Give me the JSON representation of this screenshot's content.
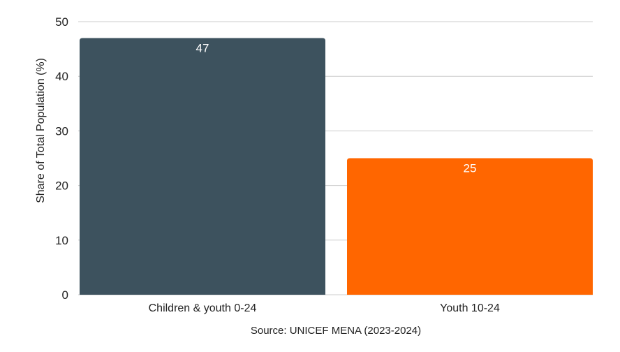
{
  "chart_data": {
    "type": "bar",
    "categories": [
      "Children & youth 0-24",
      "Youth 10-24"
    ],
    "values": [
      47,
      25
    ],
    "colors": [
      "#3d525e",
      "#ff6600"
    ],
    "data_labels": [
      "47",
      "25"
    ],
    "title": "",
    "xlabel": "Source: UNICEF MENA (2023-2024)",
    "ylabel": "Share of Total Population (%)",
    "ylim": [
      0,
      50
    ],
    "yticks": [
      0,
      10,
      20,
      30,
      40,
      50
    ],
    "grid": true,
    "grid_color": "#cccccc"
  }
}
